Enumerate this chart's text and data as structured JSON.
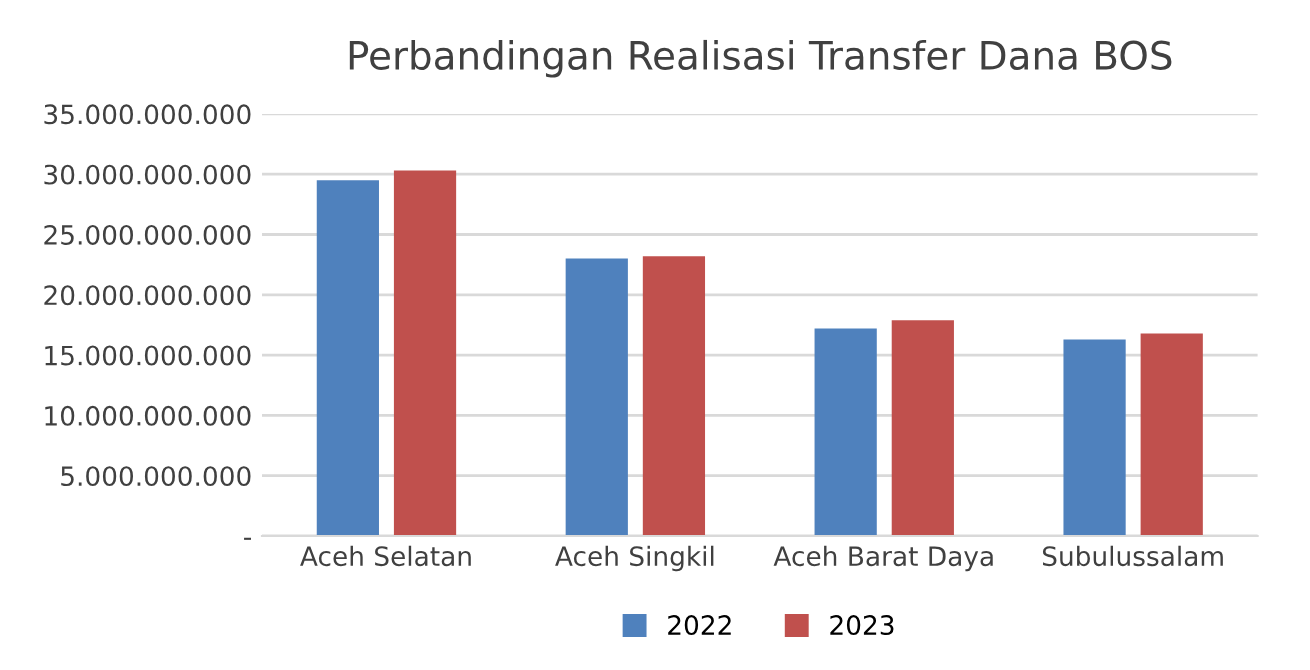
{
  "chart_data": {
    "type": "bar",
    "title": "Perbandingan Realisasi Transfer Dana BOS",
    "categories": [
      "Aceh Selatan",
      "Aceh Singkil",
      "Aceh Barat Daya",
      "Subulussalam"
    ],
    "series": [
      {
        "name": "2022",
        "color": "#4f81bd",
        "values": [
          29500000000,
          23000000000,
          17200000000,
          16300000000
        ]
      },
      {
        "name": "2023",
        "color": "#c0504d",
        "values": [
          30300000000,
          23200000000,
          17900000000,
          16800000000
        ]
      }
    ],
    "ylim": [
      0,
      35000000000
    ],
    "yticks": [
      {
        "value": 0,
        "label": "-"
      },
      {
        "value": 5000000000,
        "label": "5.000.000.000"
      },
      {
        "value": 10000000000,
        "label": "10.000.000.000"
      },
      {
        "value": 15000000000,
        "label": "15.000.000.000"
      },
      {
        "value": 20000000000,
        "label": "20.000.000.000"
      },
      {
        "value": 25000000000,
        "label": "25.000.000.000"
      },
      {
        "value": 30000000000,
        "label": "30.000.000.000"
      },
      {
        "value": 35000000000,
        "label": "35.000.000.000"
      }
    ],
    "grid": "y",
    "legend": "bottom"
  }
}
